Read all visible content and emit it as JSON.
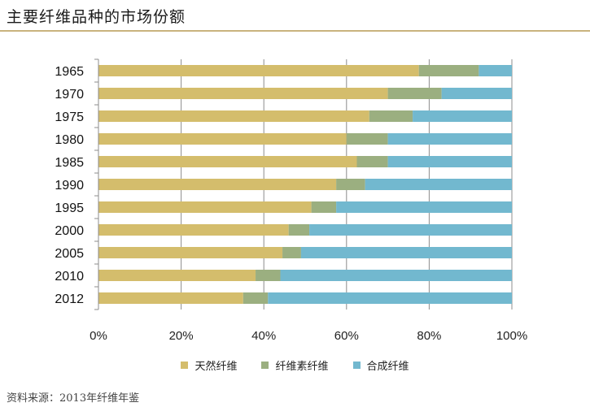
{
  "header": {
    "title": "主要纤维品种的市场份额"
  },
  "source": "资料来源：2013年纤维年鉴",
  "chart_data": {
    "type": "bar",
    "orientation": "horizontal",
    "stacked": "percent",
    "title": "",
    "xlabel": "",
    "ylabel": "",
    "xlim": [
      0,
      100
    ],
    "x_ticks": [
      "0%",
      "20%",
      "40%",
      "60%",
      "80%",
      "100%"
    ],
    "categories": [
      "1965",
      "1970",
      "1975",
      "1980",
      "1985",
      "1990",
      "1995",
      "2000",
      "2005",
      "2010",
      "2012"
    ],
    "series": [
      {
        "name": "天然纤维",
        "color": "#d4bd6c",
        "values": [
          77.5,
          70,
          65.5,
          60,
          62.5,
          57.5,
          51.5,
          46,
          44.5,
          38,
          35
        ]
      },
      {
        "name": "纤维素纤维",
        "color": "#9baf80",
        "values": [
          14.5,
          13,
          10.5,
          10,
          7.5,
          7,
          6,
          5,
          4.5,
          6,
          6
        ]
      },
      {
        "name": "合成纤维",
        "color": "#72b8cf",
        "values": [
          8,
          17,
          24,
          30,
          30,
          35.5,
          42.5,
          49,
          51,
          56,
          59
        ]
      }
    ],
    "grid": true,
    "legend_position": "bottom"
  }
}
